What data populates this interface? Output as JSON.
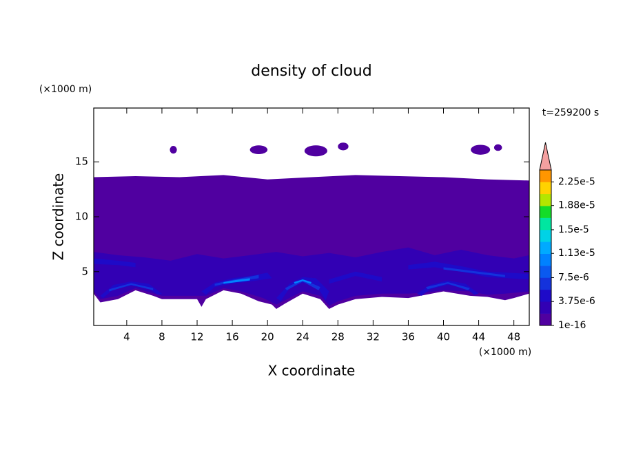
{
  "chart_data": {
    "type": "contour",
    "title": "density of cloud",
    "x_label": "X coordinate",
    "y_label": "Z coordinate",
    "x_unit": "(×1000 m)",
    "y_unit": "(×1000 m)",
    "annotation": "t=259200 s",
    "xlim": [
      0.25,
      49.75
    ],
    "ylim": [
      0.1,
      19.9
    ],
    "xticks": [
      4,
      8,
      12,
      16,
      20,
      24,
      28,
      32,
      36,
      40,
      44,
      48
    ],
    "yticks": [
      5,
      10,
      15
    ],
    "colorbar": {
      "clim": [
        1e-16,
        2.4375e-05
      ],
      "colors": [
        "#5000a0",
        "#3200b4",
        "#1e0ac8",
        "#1432dc",
        "#0a5af0",
        "#0082ff",
        "#00aaff",
        "#00d2e6",
        "#00e6a0",
        "#14dc28",
        "#b4e600",
        "#ffd200",
        "#ff9600",
        "#ff5a00",
        "#ff1e00"
      ],
      "extend_color": "#f4a0a0",
      "ticks": [
        {
          "value": 1e-16,
          "label": "1e-16"
        },
        {
          "value": 3.75e-06,
          "label": "3.75e-6"
        },
        {
          "value": 7.5e-06,
          "label": "7.5e-6"
        },
        {
          "value": 1.13e-05,
          "label": "1.13e-5"
        },
        {
          "value": 1.5e-05,
          "label": "1.5e-5"
        },
        {
          "value": 1.88e-05,
          "label": "1.88e-5"
        },
        {
          "value": 2.25e-05,
          "label": "2.25e-5"
        }
      ]
    },
    "contours": [
      {
        "value": 1e-16,
        "polygons": [
          [
            [
              0.25,
              13.6
            ],
            [
              5,
              13.7
            ],
            [
              10,
              13.6
            ],
            [
              15,
              13.8
            ],
            [
              20,
              13.4
            ],
            [
              25,
              13.6
            ],
            [
              30,
              13.8
            ],
            [
              35,
              13.7
            ],
            [
              40,
              13.6
            ],
            [
              45,
              13.4
            ],
            [
              49.75,
              13.3
            ],
            [
              49.75,
              3
            ],
            [
              48,
              2.6
            ],
            [
              47,
              2.4
            ],
            [
              45,
              2.7
            ],
            [
              43,
              2.8
            ],
            [
              40,
              3.2
            ],
            [
              38,
              2.9
            ],
            [
              36,
              2.6
            ],
            [
              33,
              2.7
            ],
            [
              30,
              2.5
            ],
            [
              28,
              2
            ],
            [
              27,
              1.6
            ],
            [
              26,
              2.5
            ],
            [
              24,
              3
            ],
            [
              22,
              2.1
            ],
            [
              21,
              1.6
            ],
            [
              20.5,
              2
            ],
            [
              19,
              2.3
            ],
            [
              17,
              3
            ],
            [
              15,
              3.3
            ],
            [
              13,
              2.5
            ],
            [
              12.5,
              1.8
            ],
            [
              12,
              2.5
            ],
            [
              8,
              2.5
            ],
            [
              7,
              2.8
            ],
            [
              5,
              3.3
            ],
            [
              3,
              2.5
            ],
            [
              1,
              2.2
            ],
            [
              0.25,
              3
            ]
          ]
        ],
        "ellipses": [
          [
            9.3,
            16.1,
            0.4,
            0.35
          ],
          [
            19,
            16.1,
            1,
            0.4
          ],
          [
            25.5,
            16,
            1.3,
            0.5
          ],
          [
            28.6,
            16.4,
            0.6,
            0.35
          ],
          [
            44.2,
            16.1,
            1.1,
            0.45
          ],
          [
            46.2,
            16.3,
            0.45,
            0.3
          ]
        ]
      },
      {
        "value": 1.875e-06,
        "polygons": [
          [
            [
              0.25,
              6.8
            ],
            [
              3,
              6.5
            ],
            [
              6,
              6.3
            ],
            [
              9,
              6
            ],
            [
              12,
              6.6
            ],
            [
              15,
              6.2
            ],
            [
              18,
              6.5
            ],
            [
              21,
              6.8
            ],
            [
              24,
              6.4
            ],
            [
              27,
              6.7
            ],
            [
              30,
              6.3
            ],
            [
              33,
              6.8
            ],
            [
              36,
              7.2
            ],
            [
              39,
              6.5
            ],
            [
              42,
              7
            ],
            [
              45,
              6.5
            ],
            [
              48,
              6.2
            ],
            [
              49.75,
              6.5
            ],
            [
              49.75,
              3.2
            ],
            [
              47,
              3
            ],
            [
              45,
              2.9
            ],
            [
              43,
              3.2
            ],
            [
              40,
              3.3
            ],
            [
              38,
              3.1
            ],
            [
              36,
              3
            ],
            [
              33,
              3
            ],
            [
              30,
              2.8
            ],
            [
              28,
              2.3
            ],
            [
              27,
              1.9
            ],
            [
              26,
              2.8
            ],
            [
              24,
              3.2
            ],
            [
              22,
              2.4
            ],
            [
              21,
              2
            ],
            [
              19.5,
              2.6
            ],
            [
              17,
              3.2
            ],
            [
              15,
              3.5
            ],
            [
              13,
              2.8
            ],
            [
              12,
              2.8
            ],
            [
              8,
              2.8
            ],
            [
              5,
              3.5
            ],
            [
              3,
              2.8
            ],
            [
              1,
              2.5
            ],
            [
              0.25,
              3.2
            ]
          ]
        ]
      },
      {
        "value": 3.75e-06,
        "polygons": [
          [
            [
              1,
              2.8
            ],
            [
              2.5,
              3.8
            ],
            [
              4.5,
              4.1
            ],
            [
              6.5,
              3.9
            ],
            [
              8,
              3
            ],
            [
              7.5,
              2.9
            ],
            [
              6.5,
              3.5
            ],
            [
              4.5,
              3.7
            ],
            [
              2.5,
              3.4
            ],
            [
              1.3,
              2.6
            ]
          ],
          [
            [
              12.5,
              3.2
            ],
            [
              14,
              4
            ],
            [
              16,
              4.4
            ],
            [
              18,
              4.6
            ],
            [
              20,
              4.9
            ],
            [
              20.5,
              4.4
            ],
            [
              18,
              4.1
            ],
            [
              16,
              3.9
            ],
            [
              14,
              3.6
            ],
            [
              13,
              2.9
            ]
          ],
          [
            [
              21,
              2.6
            ],
            [
              22.5,
              3.9
            ],
            [
              24,
              4.5
            ],
            [
              25.5,
              4.4
            ],
            [
              27,
              3.2
            ],
            [
              26.6,
              2.4
            ],
            [
              25.5,
              3.8
            ],
            [
              24,
              4
            ],
            [
              22.5,
              3.5
            ],
            [
              21.5,
              2.3
            ]
          ],
          [
            [
              37,
              3
            ],
            [
              38.5,
              3.8
            ],
            [
              40.5,
              4.2
            ],
            [
              42.5,
              3.9
            ],
            [
              44,
              3
            ],
            [
              43.5,
              2.9
            ],
            [
              42.5,
              3.5
            ],
            [
              40.5,
              3.8
            ],
            [
              38.5,
              3.4
            ],
            [
              37.5,
              2.8
            ]
          ],
          [
            [
              36,
              5.6
            ],
            [
              39,
              5.9
            ],
            [
              42,
              5.5
            ],
            [
              45,
              5
            ],
            [
              49.75,
              4.8
            ],
            [
              49.75,
              4.3
            ],
            [
              45,
              4.5
            ],
            [
              42,
              5
            ],
            [
              39,
              5.4
            ],
            [
              36,
              5.2
            ]
          ],
          [
            [
              0.25,
              6.2
            ],
            [
              3,
              6
            ],
            [
              5,
              5.8
            ],
            [
              5,
              5.4
            ],
            [
              3,
              5.6
            ],
            [
              0.25,
              5.7
            ]
          ],
          [
            [
              27,
              4.3
            ],
            [
              30,
              5
            ],
            [
              33,
              4.5
            ],
            [
              33,
              4.1
            ],
            [
              30,
              4.6
            ],
            [
              27,
              3.9
            ]
          ]
        ]
      },
      {
        "value": 5.625e-06,
        "polygons": [
          [
            [
              2,
              3.4
            ],
            [
              4.5,
              3.95
            ],
            [
              7,
              3.5
            ],
            [
              7,
              3.3
            ],
            [
              4.5,
              3.8
            ],
            [
              2,
              3.2
            ]
          ],
          [
            [
              14,
              3.9
            ],
            [
              16,
              4.25
            ],
            [
              19,
              4.7
            ],
            [
              19,
              4.4
            ],
            [
              16,
              4.05
            ],
            [
              14,
              3.7
            ]
          ],
          [
            [
              22,
              3.5
            ],
            [
              24,
              4.3
            ],
            [
              26,
              3.6
            ],
            [
              25.8,
              3.3
            ],
            [
              24,
              4.1
            ],
            [
              22.2,
              3.3
            ]
          ],
          [
            [
              38,
              3.6
            ],
            [
              40.5,
              4.05
            ],
            [
              43,
              3.5
            ],
            [
              42.8,
              3.3
            ],
            [
              40.5,
              3.9
            ],
            [
              38.2,
              3.4
            ]
          ],
          [
            [
              40,
              5.4
            ],
            [
              43,
              5.1
            ],
            [
              47,
              4.7
            ],
            [
              47,
              4.5
            ],
            [
              43,
              4.9
            ],
            [
              40,
              5.2
            ]
          ]
        ]
      },
      {
        "value": 9.375e-06,
        "polygons": [
          [
            [
              15,
              4.05
            ],
            [
              16.5,
              4.25
            ],
            [
              18,
              4.4
            ],
            [
              18,
              4.2
            ],
            [
              16.5,
              4.05
            ],
            [
              15,
              3.9
            ]
          ],
          [
            [
              23,
              4.05
            ],
            [
              24,
              4.3
            ],
            [
              25,
              4.05
            ],
            [
              24.9,
              3.9
            ],
            [
              24,
              4.15
            ],
            [
              23.1,
              3.9
            ]
          ]
        ]
      }
    ]
  }
}
